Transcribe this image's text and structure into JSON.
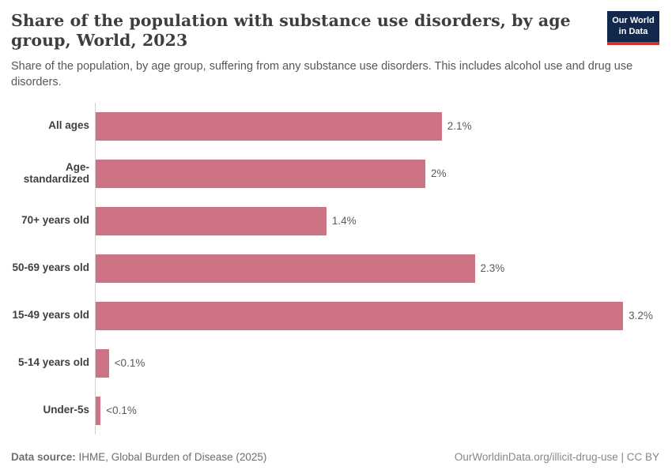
{
  "header": {
    "title": "Share of the population with substance use disorders, by age group, World, 2023",
    "subtitle": "Share of the population, by age group, suffering from any substance use disorders. This includes alcohol use and drug use disorders.",
    "logo": {
      "line1": "Our World",
      "line2": "in Data"
    }
  },
  "chart_data": {
    "type": "bar",
    "orientation": "horizontal",
    "title": "Share of the population with substance use disorders, by age group, World, 2023",
    "categories": [
      "All ages",
      "Age-standardized",
      "70+ years old",
      "50-69 years old",
      "15-49 years old",
      "5-14 years old",
      "Under-5s"
    ],
    "values": [
      2.1,
      2.0,
      1.4,
      2.3,
      3.2,
      0.08,
      0.03
    ],
    "value_labels": [
      "2.1%",
      "2%",
      "1.4%",
      "2.3%",
      "3.2%",
      "<0.1%",
      "<0.1%"
    ],
    "unit": "%",
    "xlabel": "",
    "ylabel": "",
    "xlim": [
      0,
      3.42
    ],
    "grid": false,
    "legend": false
  },
  "footer": {
    "datasource_label": "Data source:",
    "datasource_value": " IHME, Global Burden of Disease (2025)",
    "right": "OurWorldinData.org/illicit-drug-use | CC BY"
  },
  "colors": {
    "bar": "#cd7384",
    "axis": "#d0d0d0",
    "title": "#3d3d3d",
    "subtitle": "#575757",
    "label": "#3f3f3f",
    "value": "#5b5b5b",
    "footer_left": "#6e6e6e",
    "footer_right": "#888888",
    "logo_bg": "#12284c",
    "logo_accent": "#d0342c"
  }
}
